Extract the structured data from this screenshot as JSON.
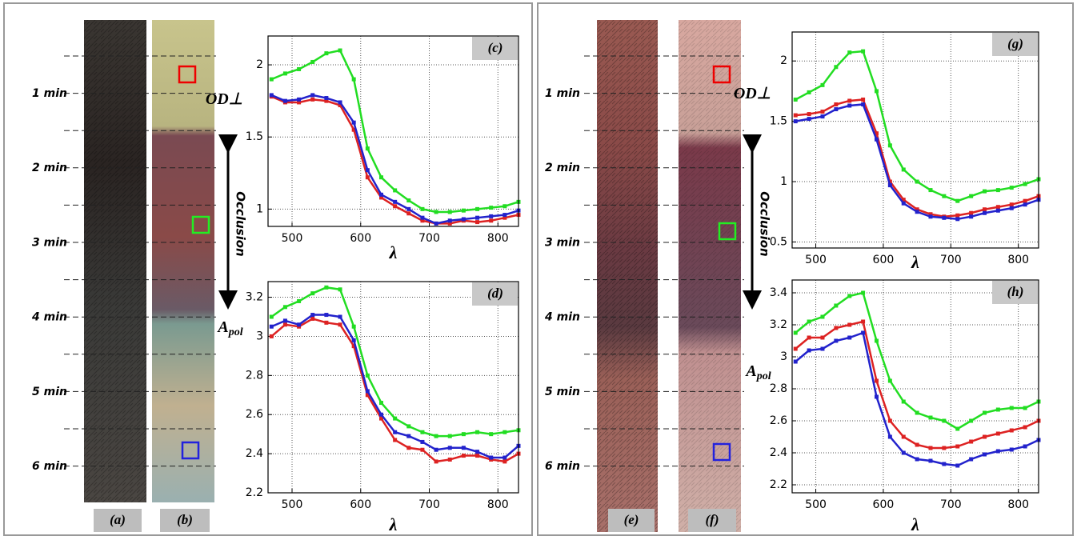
{
  "figure": {
    "left": {
      "strip_labels": [
        "(a)",
        "(b)"
      ],
      "times": [
        "1 min",
        "2 min",
        "3 min",
        "4 min",
        "5 min",
        "6 min"
      ],
      "arrow_label": "Occlusion"
    },
    "right": {
      "strip_labels": [
        "(e)",
        "(f)"
      ],
      "times": [
        "1 min",
        "2 min",
        "3 min",
        "4 min",
        "5 min",
        "6 min"
      ],
      "arrow_label": "Occlusion"
    }
  },
  "chart_data": [
    {
      "type": "line",
      "label": "(c)",
      "ylabel": "OD⊥",
      "xlabel": "λ",
      "x": [
        470,
        490,
        510,
        530,
        550,
        570,
        590,
        610,
        630,
        650,
        670,
        690,
        710,
        730,
        750,
        770,
        790,
        810,
        830
      ],
      "xlim": [
        465,
        830
      ],
      "xticks": [
        500,
        600,
        700,
        800
      ],
      "ylim": [
        0.88,
        2.2
      ],
      "yticks": [
        1,
        1.5,
        2
      ],
      "grid": true,
      "series": [
        {
          "color": "#22dd22",
          "values": [
            1.9,
            1.94,
            1.97,
            2.02,
            2.08,
            2.1,
            1.9,
            1.42,
            1.22,
            1.13,
            1.06,
            1.0,
            0.98,
            0.98,
            0.99,
            1.0,
            1.01,
            1.02,
            1.05
          ]
        },
        {
          "color": "#dd2222",
          "values": [
            1.78,
            1.74,
            1.74,
            1.76,
            1.75,
            1.72,
            1.55,
            1.22,
            1.08,
            1.02,
            0.97,
            0.92,
            0.9,
            0.9,
            0.92,
            0.91,
            0.92,
            0.94,
            0.96
          ]
        },
        {
          "color": "#2222cc",
          "values": [
            1.79,
            1.75,
            1.76,
            1.79,
            1.77,
            1.74,
            1.6,
            1.27,
            1.1,
            1.05,
            1.0,
            0.94,
            0.9,
            0.92,
            0.93,
            0.94,
            0.95,
            0.96,
            0.99
          ]
        }
      ]
    },
    {
      "type": "line",
      "label": "(d)",
      "ylabel": "A",
      "ylabel_subscript": "pol",
      "xlabel": "λ",
      "x": [
        470,
        490,
        510,
        530,
        550,
        570,
        590,
        610,
        630,
        650,
        670,
        690,
        710,
        730,
        750,
        770,
        790,
        810,
        830
      ],
      "xlim": [
        465,
        830
      ],
      "xticks": [
        500,
        600,
        700,
        800
      ],
      "ylim": [
        2.2,
        3.28
      ],
      "yticks": [
        2.2,
        2.4,
        2.6,
        2.8,
        3,
        3.2
      ],
      "grid": true,
      "series": [
        {
          "color": "#22dd22",
          "values": [
            3.1,
            3.15,
            3.18,
            3.22,
            3.25,
            3.24,
            3.05,
            2.8,
            2.66,
            2.58,
            2.54,
            2.51,
            2.49,
            2.49,
            2.5,
            2.51,
            2.5,
            2.51,
            2.52
          ]
        },
        {
          "color": "#dd2222",
          "values": [
            3.0,
            3.06,
            3.05,
            3.09,
            3.07,
            3.06,
            2.95,
            2.7,
            2.58,
            2.47,
            2.43,
            2.42,
            2.36,
            2.37,
            2.39,
            2.39,
            2.37,
            2.36,
            2.4
          ]
        },
        {
          "color": "#2222cc",
          "values": [
            3.05,
            3.08,
            3.06,
            3.11,
            3.11,
            3.1,
            2.98,
            2.72,
            2.6,
            2.51,
            2.49,
            2.46,
            2.42,
            2.43,
            2.43,
            2.41,
            2.38,
            2.38,
            2.44
          ]
        }
      ]
    },
    {
      "type": "line",
      "label": "(g)",
      "ylabel": "OD⊥",
      "xlabel": "λ",
      "x": [
        470,
        490,
        510,
        530,
        550,
        570,
        590,
        610,
        630,
        650,
        670,
        690,
        710,
        730,
        750,
        770,
        790,
        810,
        830
      ],
      "xlim": [
        465,
        830
      ],
      "xticks": [
        500,
        600,
        700,
        800
      ],
      "ylim": [
        0.45,
        2.24
      ],
      "yticks": [
        0.5,
        1,
        1.5,
        2
      ],
      "grid": true,
      "series": [
        {
          "color": "#22dd22",
          "values": [
            1.68,
            1.74,
            1.8,
            1.95,
            2.07,
            2.08,
            1.75,
            1.3,
            1.1,
            1.0,
            0.93,
            0.88,
            0.84,
            0.88,
            0.92,
            0.93,
            0.95,
            0.98,
            1.02
          ]
        },
        {
          "color": "#dd2222",
          "values": [
            1.55,
            1.56,
            1.58,
            1.64,
            1.67,
            1.68,
            1.4,
            1.0,
            0.85,
            0.77,
            0.73,
            0.71,
            0.72,
            0.74,
            0.77,
            0.79,
            0.81,
            0.84,
            0.88
          ]
        },
        {
          "color": "#2222cc",
          "values": [
            1.5,
            1.52,
            1.54,
            1.6,
            1.63,
            1.64,
            1.35,
            0.97,
            0.82,
            0.75,
            0.71,
            0.7,
            0.69,
            0.71,
            0.74,
            0.76,
            0.78,
            0.81,
            0.85
          ]
        }
      ]
    },
    {
      "type": "line",
      "label": "(h)",
      "ylabel": "A",
      "ylabel_subscript": "pol",
      "xlabel": "λ",
      "x": [
        470,
        490,
        510,
        530,
        550,
        570,
        590,
        610,
        630,
        650,
        670,
        690,
        710,
        730,
        750,
        770,
        790,
        810,
        830
      ],
      "xlim": [
        465,
        830
      ],
      "xticks": [
        500,
        600,
        700,
        800
      ],
      "ylim": [
        2.15,
        3.48
      ],
      "yticks": [
        2.2,
        2.4,
        2.6,
        2.8,
        3,
        3.2,
        3.4
      ],
      "grid": true,
      "series": [
        {
          "color": "#22dd22",
          "values": [
            3.15,
            3.22,
            3.25,
            3.32,
            3.38,
            3.4,
            3.1,
            2.85,
            2.72,
            2.65,
            2.62,
            2.6,
            2.55,
            2.6,
            2.65,
            2.67,
            2.68,
            2.68,
            2.72
          ]
        },
        {
          "color": "#dd2222",
          "values": [
            3.05,
            3.12,
            3.12,
            3.18,
            3.2,
            3.22,
            2.85,
            2.6,
            2.5,
            2.45,
            2.43,
            2.43,
            2.44,
            2.47,
            2.5,
            2.52,
            2.54,
            2.56,
            2.6
          ]
        },
        {
          "color": "#2222cc",
          "values": [
            2.97,
            3.04,
            3.05,
            3.1,
            3.12,
            3.15,
            2.75,
            2.5,
            2.4,
            2.36,
            2.35,
            2.33,
            2.32,
            2.36,
            2.39,
            2.41,
            2.42,
            2.44,
            2.48
          ]
        }
      ]
    }
  ]
}
